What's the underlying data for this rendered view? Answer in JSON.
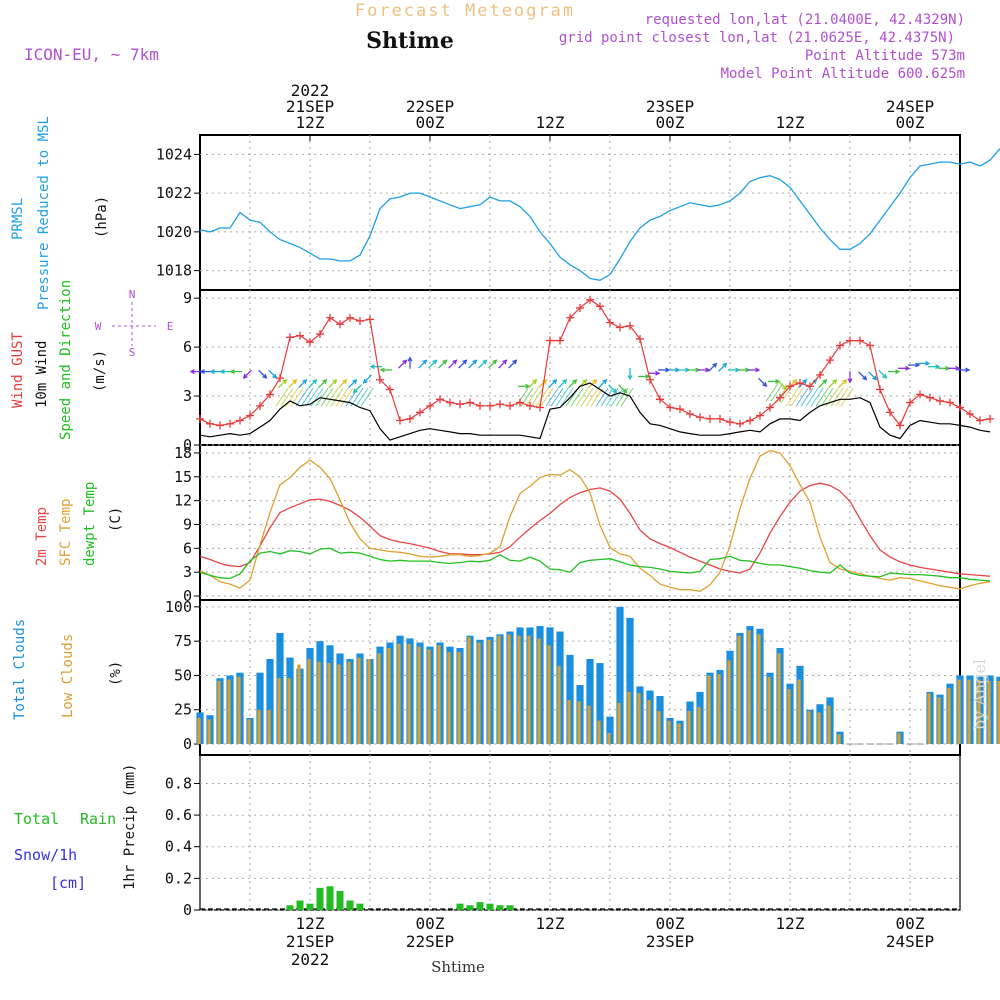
{
  "header": {
    "chart_title": "Forecast Meteogram",
    "location": "Shtime",
    "model": "ICON-EU, ~ 7km",
    "requested": "requested lon,lat (21.0400E, 42.4329N)",
    "gridpoint": "grid point closest lon,lat (21.0625E, 42.4375N)",
    "point_alt": "Point Altitude 573m",
    "model_alt": "Model Point Altitude 600.625m",
    "watermark": "by Angel",
    "footer_location": "Shtime"
  },
  "colors": {
    "pressure": "#1e9fe8",
    "gust": "#e83a3a",
    "wind": "#000000",
    "t2m": "#e84545",
    "sfc": "#e0a030",
    "dewpt": "#20c020",
    "total_clouds": "#1a8fe0",
    "low_clouds": "#d9a030",
    "rain": "#22bb22",
    "snow": "#3333dd",
    "meta": "#b050d0"
  },
  "time_axis": {
    "top_labels": [
      {
        "t": 12,
        "lines": [
          "2022",
          "21SEP",
          "12Z"
        ]
      },
      {
        "t": 24,
        "lines": [
          "22SEP",
          "00Z"
        ]
      },
      {
        "t": 36,
        "lines": [
          "12Z"
        ]
      },
      {
        "t": 48,
        "lines": [
          "23SEP",
          "00Z"
        ]
      },
      {
        "t": 60,
        "lines": [
          "12Z"
        ]
      },
      {
        "t": 72,
        "lines": [
          "24SEP",
          "00Z"
        ]
      }
    ],
    "bottom_labels": [
      {
        "t": 12,
        "lines": [
          "12Z",
          "21SEP",
          "2022"
        ]
      },
      {
        "t": 24,
        "lines": [
          "00Z",
          "22SEP"
        ]
      },
      {
        "t": 36,
        "lines": [
          "12Z"
        ]
      },
      {
        "t": 48,
        "lines": [
          "00Z",
          "23SEP"
        ]
      },
      {
        "t": 60,
        "lines": [
          "12Z"
        ]
      },
      {
        "t": 72,
        "lines": [
          "00Z",
          "24SEP"
        ]
      }
    ]
  },
  "panels": {
    "pressure": {
      "labels": [
        "PRMSL",
        "Pressure Reduced to MSL"
      ],
      "unit": "(hPa)",
      "ticks": [
        1018,
        1020,
        1022,
        1024
      ]
    },
    "wind": {
      "labels": [
        "Wind GUST",
        "10m Wind",
        "Speed and Direction"
      ],
      "unit": "(m/s)",
      "ticks": [
        0,
        3,
        6,
        9
      ],
      "compass": {
        "n": "N",
        "s": "S",
        "w": "W",
        "e": "E"
      }
    },
    "temp": {
      "labels": [
        "2m Temp",
        "SFC Temp",
        "dewpt Temp"
      ],
      "unit": "(C)",
      "ticks": [
        0,
        3,
        6,
        9,
        12,
        15,
        18
      ]
    },
    "clouds": {
      "labels": [
        "Total Clouds",
        "Low Clouds"
      ],
      "unit": "(%)",
      "ticks": [
        0,
        25,
        50,
        75,
        100
      ]
    },
    "precip": {
      "labels": [
        "Total",
        "Rain",
        "Snow/1h",
        "[cm]"
      ],
      "unit": "1hr Precip (mm)",
      "ticks": [
        "0",
        "0.2",
        "0.4",
        "0.6",
        "0.8"
      ]
    }
  },
  "chart_data": {
    "type": "line",
    "title": "Forecast Meteogram",
    "x_start_hour": 1,
    "x_end_hour": 77,
    "pressure": {
      "ylim": [
        1017,
        1025
      ],
      "values": [
        1020.1,
        1020.0,
        1020.2,
        1020.2,
        1021.0,
        1020.6,
        1020.5,
        1020.0,
        1019.6,
        1019.4,
        1019.2,
        1018.9,
        1018.6,
        1018.6,
        1018.5,
        1018.5,
        1018.8,
        1019.8,
        1021.2,
        1021.7,
        1021.8,
        1022.0,
        1022.0,
        1021.8,
        1021.6,
        1021.4,
        1021.2,
        1021.3,
        1021.4,
        1021.8,
        1021.6,
        1021.6,
        1021.3,
        1020.8,
        1020.0,
        1019.4,
        1018.7,
        1018.3,
        1018.0,
        1017.6,
        1017.5,
        1017.8,
        1018.6,
        1019.5,
        1020.2,
        1020.6,
        1020.8,
        1021.1,
        1021.3,
        1021.5,
        1021.4,
        1021.3,
        1021.4,
        1021.6,
        1022.0,
        1022.6,
        1022.8,
        1022.9,
        1022.7,
        1022.3,
        1021.6,
        1020.9,
        1020.2,
        1019.6,
        1019.1,
        1019.1,
        1019.4,
        1019.9,
        1020.6,
        1021.3,
        1022.0,
        1022.8,
        1023.4,
        1023.5,
        1023.6,
        1023.6,
        1023.5,
        1023.6,
        1023.4,
        1023.7,
        1024.3
      ]
    },
    "wind": {
      "ylim": [
        0,
        9.5
      ],
      "gust": [
        1.6,
        1.3,
        1.2,
        1.3,
        1.5,
        1.8,
        2.4,
        3.1,
        4.1,
        6.6,
        6.7,
        6.3,
        6.8,
        7.8,
        7.4,
        7.8,
        7.6,
        7.7,
        4.0,
        3.4,
        1.5,
        1.6,
        2.0,
        2.4,
        2.8,
        2.6,
        2.5,
        2.6,
        2.4,
        2.4,
        2.5,
        2.4,
        2.6,
        2.4,
        2.3,
        6.4,
        6.4,
        7.8,
        8.4,
        8.9,
        8.5,
        7.5,
        7.2,
        7.3,
        6.5,
        4.0,
        2.8,
        2.3,
        2.2,
        1.9,
        1.7,
        1.6,
        1.6,
        1.4,
        1.3,
        1.5,
        1.8,
        2.3,
        2.9,
        3.6,
        3.8,
        3.6,
        4.3,
        5.2,
        6.1,
        6.4,
        6.4,
        6.1,
        3.4,
        2.0,
        1.2,
        2.6,
        3.1,
        2.9,
        2.7,
        2.6,
        2.3,
        1.9,
        1.5,
        1.6
      ],
      "speed": [
        0.6,
        0.5,
        0.6,
        0.7,
        0.6,
        0.7,
        1.1,
        1.5,
        2.2,
        2.7,
        2.4,
        2.5,
        2.9,
        2.8,
        2.7,
        2.6,
        2.3,
        2.1,
        1.0,
        0.3,
        0.5,
        0.7,
        0.9,
        1.0,
        0.9,
        0.8,
        0.7,
        0.7,
        0.6,
        0.6,
        0.6,
        0.6,
        0.6,
        0.5,
        0.4,
        2.2,
        2.3,
        2.9,
        3.6,
        3.8,
        3.4,
        3.0,
        3.2,
        3.0,
        2.0,
        1.3,
        1.2,
        1.0,
        0.8,
        0.7,
        0.6,
        0.6,
        0.6,
        0.7,
        0.8,
        0.9,
        0.8,
        1.3,
        1.6,
        1.6,
        1.5,
        2.0,
        2.4,
        2.6,
        2.8,
        2.8,
        2.9,
        2.6,
        1.1,
        0.6,
        0.4,
        1.2,
        1.5,
        1.4,
        1.3,
        1.3,
        1.2,
        1.1,
        0.9,
        0.8
      ]
    },
    "temp": {
      "ylim": [
        -0.5,
        19
      ],
      "t2m": [
        5.0,
        4.6,
        4.1,
        3.8,
        3.7,
        4.2,
        6.3,
        8.6,
        10.5,
        11.1,
        11.6,
        12.1,
        12.2,
        11.9,
        11.4,
        10.8,
        9.9,
        8.8,
        7.6,
        7.1,
        6.8,
        6.6,
        6.3,
        6.0,
        5.6,
        5.3,
        5.3,
        5.2,
        5.2,
        5.3,
        5.5,
        6.2,
        7.4,
        8.5,
        9.5,
        10.4,
        11.5,
        12.4,
        13.0,
        13.4,
        13.6,
        13.2,
        12.2,
        10.4,
        8.3,
        7.2,
        6.6,
        6.1,
        5.5,
        4.9,
        4.4,
        3.9,
        3.4,
        3.1,
        2.9,
        3.4,
        5.4,
        7.9,
        10.0,
        11.8,
        13.2,
        13.9,
        14.2,
        13.9,
        13.2,
        11.9,
        9.7,
        7.6,
        5.8,
        4.9,
        4.3,
        3.9,
        3.6,
        3.4,
        3.2,
        3.0,
        2.8,
        2.7,
        2.6,
        2.5
      ],
      "sfc": [
        3.2,
        2.6,
        1.8,
        1.5,
        1.0,
        2.0,
        6.4,
        10.5,
        14.0,
        14.9,
        16.2,
        17.1,
        16.2,
        14.8,
        12.1,
        9.2,
        7.2,
        6.0,
        5.8,
        5.6,
        5.5,
        5.3,
        5.0,
        4.9,
        5.0,
        5.2,
        5.2,
        5.0,
        5.1,
        5.4,
        6.2,
        10.0,
        12.9,
        13.8,
        14.9,
        15.3,
        15.2,
        15.9,
        15.0,
        13.0,
        8.9,
        6.1,
        5.3,
        5.0,
        3.5,
        2.6,
        1.5,
        1.1,
        0.8,
        0.8,
        0.6,
        1.4,
        3.0,
        6.3,
        11.0,
        14.8,
        17.6,
        18.3,
        18.0,
        16.4,
        14.0,
        11.8,
        7.4,
        4.2,
        3.4,
        3.1,
        2.8,
        2.5,
        2.2,
        2.0,
        2.3,
        2.2,
        1.9,
        1.6,
        1.3,
        1.1,
        0.9,
        1.3,
        1.6,
        1.8
      ],
      "dewpt": [
        3.0,
        2.6,
        2.3,
        2.2,
        2.8,
        4.4,
        5.4,
        5.6,
        5.3,
        5.7,
        5.6,
        5.3,
        5.9,
        6.0,
        5.4,
        5.5,
        5.4,
        5.0,
        4.6,
        4.4,
        4.5,
        4.4,
        4.4,
        4.4,
        4.2,
        4.1,
        4.2,
        4.4,
        4.3,
        4.5,
        5.2,
        4.5,
        4.4,
        4.9,
        4.4,
        3.4,
        3.3,
        3.0,
        4.2,
        4.5,
        4.6,
        4.7,
        4.3,
        3.9,
        3.7,
        3.6,
        3.4,
        3.1,
        3.0,
        2.9,
        3.1,
        4.6,
        4.7,
        5.0,
        4.5,
        4.4,
        4.1,
        3.9,
        3.9,
        3.7,
        3.5,
        3.2,
        3.0,
        2.9,
        3.9,
        2.9,
        2.6,
        2.5,
        2.4,
        2.9,
        2.8,
        2.7,
        2.7,
        2.6,
        2.5,
        2.3,
        2.3,
        2.1,
        2.0,
        1.9
      ]
    },
    "clouds": {
      "ylim": [
        -8,
        105
      ],
      "total": [
        23,
        21,
        48,
        50,
        52,
        19,
        52,
        62,
        81,
        63,
        55,
        70,
        75,
        72,
        66,
        62,
        66,
        62,
        71,
        74,
        79,
        77,
        74,
        71,
        74,
        71,
        70,
        79,
        76,
        78,
        80,
        82,
        85,
        85,
        86,
        85,
        82,
        65,
        43,
        62,
        59,
        20,
        100,
        92,
        42,
        39,
        35,
        19,
        17,
        31,
        38,
        52,
        54,
        68,
        81,
        86,
        84,
        52,
        70,
        44,
        57,
        25,
        29,
        34,
        9,
        0,
        0,
        0,
        0,
        0,
        9,
        0,
        0,
        38,
        36,
        44,
        50,
        50,
        50,
        50,
        49
      ],
      "low": [
        19,
        18,
        46,
        47,
        49,
        18,
        25,
        25,
        48,
        48,
        58,
        62,
        60,
        59,
        58,
        60,
        63,
        62,
        66,
        70,
        73,
        73,
        71,
        69,
        72,
        67,
        67,
        78,
        74,
        76,
        79,
        80,
        79,
        79,
        77,
        72,
        57,
        32,
        31,
        28,
        17,
        8,
        30,
        38,
        37,
        32,
        24,
        17,
        15,
        24,
        27,
        50,
        51,
        61,
        79,
        83,
        80,
        49,
        66,
        40,
        47,
        24,
        23,
        28,
        7,
        0,
        0,
        0,
        0,
        0,
        8,
        0,
        0,
        37,
        34,
        41,
        47,
        47,
        47,
        46,
        46
      ]
    },
    "precip": {
      "ylim": [
        0,
        0.98
      ],
      "rain": [
        0,
        0,
        0,
        0,
        0,
        0,
        0,
        0,
        0,
        0.03,
        0.06,
        0.04,
        0.14,
        0.15,
        0.12,
        0.06,
        0.04,
        0,
        0,
        0,
        0,
        0,
        0,
        0,
        0,
        0,
        0.04,
        0.03,
        0.05,
        0.04,
        0.03,
        0.03,
        0,
        0,
        0,
        0,
        0,
        0,
        0,
        0,
        0,
        0,
        0,
        0,
        0,
        0,
        0,
        0,
        0,
        0,
        0,
        0,
        0,
        0,
        0,
        0,
        0,
        0,
        0,
        0,
        0,
        0,
        0,
        0,
        0,
        0,
        0,
        0,
        0,
        0,
        0,
        0,
        0,
        0,
        0,
        0,
        0,
        0,
        0,
        0,
        0
      ]
    },
    "wind_arrows": [
      {
        "t": 1,
        "dir": "W",
        "speed": 4.5
      },
      {
        "t": 2,
        "dir": "W",
        "speed": 4.5
      },
      {
        "t": 3,
        "dir": "W",
        "speed": 4.5
      },
      {
        "t": 4,
        "dir": "W",
        "speed": 4.5
      },
      {
        "t": 5,
        "dir": "W",
        "speed": 4.5
      },
      {
        "t": 6,
        "dir": "SW",
        "speed": 4.5
      },
      {
        "t": 7,
        "dir": "SE",
        "speed": 4.5
      },
      {
        "t": 8,
        "dir": "SE",
        "speed": 4.5
      },
      {
        "t": 9,
        "dir": "NE",
        "speed": 3.6
      },
      {
        "t": 10,
        "dir": "NE",
        "speed": 3.6
      },
      {
        "t": 11,
        "dir": "NE",
        "speed": 3.6
      },
      {
        "t": 12,
        "dir": "NE",
        "speed": 3.6
      },
      {
        "t": 13,
        "dir": "NE",
        "speed": 3.6
      },
      {
        "t": 14,
        "dir": "NE",
        "speed": 3.6
      },
      {
        "t": 15,
        "dir": "NE",
        "speed": 3.6
      },
      {
        "t": 16,
        "dir": "NE",
        "speed": 3.6
      },
      {
        "t": 17,
        "dir": "SW",
        "speed": 3.6
      },
      {
        "t": 18,
        "dir": "SW",
        "speed": 4.2
      },
      {
        "t": 19,
        "dir": "W",
        "speed": 4.8
      },
      {
        "t": 20,
        "dir": "W",
        "speed": 4.6
      },
      {
        "t": 21,
        "dir": "NE",
        "speed": 4.8
      },
      {
        "t": 22,
        "dir": "N",
        "speed": 4.8
      },
      {
        "t": 23,
        "dir": "NE",
        "speed": 4.8
      },
      {
        "t": 24,
        "dir": "NE",
        "speed": 4.8
      },
      {
        "t": 25,
        "dir": "NE",
        "speed": 4.8
      },
      {
        "t": 26,
        "dir": "NE",
        "speed": 4.8
      },
      {
        "t": 27,
        "dir": "NE",
        "speed": 4.8
      },
      {
        "t": 28,
        "dir": "NE",
        "speed": 4.8
      },
      {
        "t": 29,
        "dir": "NE",
        "speed": 4.8
      },
      {
        "t": 30,
        "dir": "NE",
        "speed": 4.8
      },
      {
        "t": 31,
        "dir": "NE",
        "speed": 4.8
      },
      {
        "t": 32,
        "dir": "NE",
        "speed": 4.8
      },
      {
        "t": 33,
        "dir": "E",
        "speed": 3.6
      },
      {
        "t": 34,
        "dir": "NE",
        "speed": 3.6
      },
      {
        "t": 35,
        "dir": "NE",
        "speed": 3.6
      },
      {
        "t": 36,
        "dir": "NE",
        "speed": 3.6
      },
      {
        "t": 37,
        "dir": "NE",
        "speed": 3.6
      },
      {
        "t": 38,
        "dir": "NE",
        "speed": 3.6
      },
      {
        "t": 39,
        "dir": "NE",
        "speed": 3.6
      },
      {
        "t": 40,
        "dir": "NE",
        "speed": 3.6
      },
      {
        "t": 41,
        "dir": "NE",
        "speed": 3.6
      },
      {
        "t": 42,
        "dir": "SE",
        "speed": 3.6
      },
      {
        "t": 43,
        "dir": "SE",
        "speed": 3.6
      },
      {
        "t": 44,
        "dir": "S",
        "speed": 4.6
      },
      {
        "t": 45,
        "dir": "E",
        "speed": 4.2
      },
      {
        "t": 46,
        "dir": "E",
        "speed": 4.4
      },
      {
        "t": 47,
        "dir": "E",
        "speed": 4.6
      },
      {
        "t": 48,
        "dir": "E",
        "speed": 4.6
      },
      {
        "t": 49,
        "dir": "E",
        "speed": 4.6
      },
      {
        "t": 50,
        "dir": "E",
        "speed": 4.6
      },
      {
        "t": 51,
        "dir": "E",
        "speed": 4.6
      },
      {
        "t": 52,
        "dir": "NE",
        "speed": 4.6
      },
      {
        "t": 53,
        "dir": "NE",
        "speed": 4.6
      },
      {
        "t": 54,
        "dir": "E",
        "speed": 4.6
      },
      {
        "t": 55,
        "dir": "E",
        "speed": 4.6
      },
      {
        "t": 56,
        "dir": "E",
        "speed": 4.6
      },
      {
        "t": 57,
        "dir": "SE",
        "speed": 4.0
      },
      {
        "t": 58,
        "dir": "E",
        "speed": 3.9
      },
      {
        "t": 59,
        "dir": "SE",
        "speed": 3.8
      },
      {
        "t": 60,
        "dir": "NE",
        "speed": 3.6
      },
      {
        "t": 61,
        "dir": "NE",
        "speed": 3.6
      },
      {
        "t": 62,
        "dir": "NE",
        "speed": 3.6
      },
      {
        "t": 63,
        "dir": "NE",
        "speed": 3.6
      },
      {
        "t": 64,
        "dir": "NE",
        "speed": 3.6
      },
      {
        "t": 65,
        "dir": "NE",
        "speed": 3.6
      },
      {
        "t": 66,
        "dir": "S",
        "speed": 4.4
      },
      {
        "t": 67,
        "dir": "SE",
        "speed": 4.4
      },
      {
        "t": 68,
        "dir": "SE",
        "speed": 4.4
      },
      {
        "t": 69,
        "dir": "SE",
        "speed": 4.5
      },
      {
        "t": 70,
        "dir": "E",
        "speed": 4.5
      },
      {
        "t": 71,
        "dir": "E",
        "speed": 4.7
      },
      {
        "t": 72,
        "dir": "E",
        "speed": 4.9
      },
      {
        "t": 73,
        "dir": "E",
        "speed": 5.0
      },
      {
        "t": 74,
        "dir": "E",
        "speed": 4.8
      },
      {
        "t": 75,
        "dir": "E",
        "speed": 4.7
      },
      {
        "t": 76,
        "dir": "E",
        "speed": 4.7
      },
      {
        "t": 77,
        "dir": "E",
        "speed": 4.6
      }
    ],
    "arrow_colors": [
      "#8a2be2",
      "#3050e0",
      "#1aa0e0",
      "#20c0c0",
      "#40c040",
      "#a0d020",
      "#e0c020"
    ]
  }
}
